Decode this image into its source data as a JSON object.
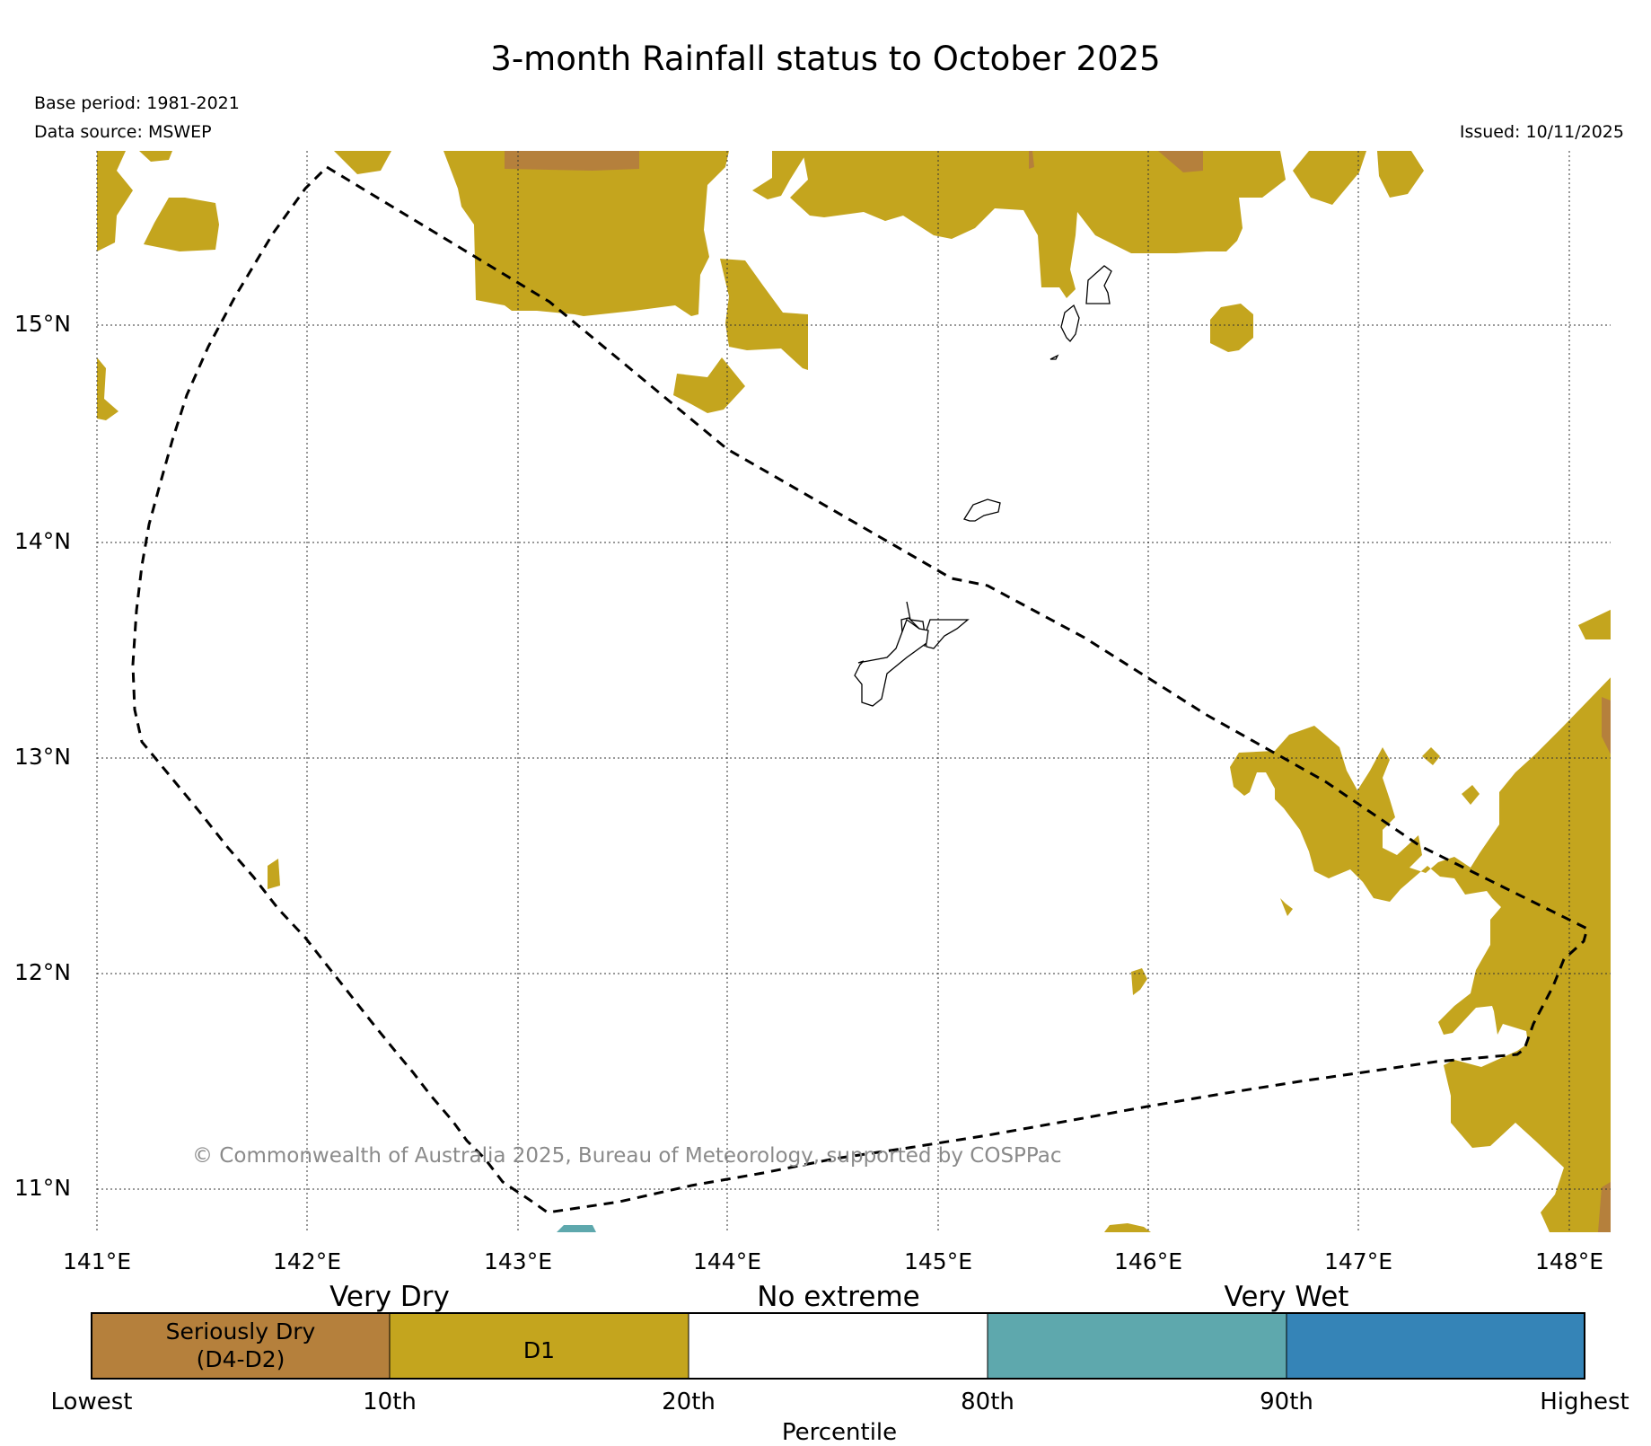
{
  "header": {
    "title": "3-month Rainfall status to October 2025",
    "base_period": "Base period: 1981-2021",
    "data_source": "Data source: MSWEP",
    "issued": "Issued: 10/11/2025"
  },
  "map": {
    "lat_labels": [
      "15°N",
      "14°N",
      "13°N",
      "12°N",
      "11°N"
    ],
    "lon_labels": [
      "141°E",
      "142°E",
      "143°E",
      "144°E",
      "145°E",
      "146°E",
      "147°E",
      "148°E"
    ],
    "copyright": "© Commonwealth of Australia 2025, Bureau of Meteorology, supported by COSPPac",
    "boundary_style": "dashed"
  },
  "legend": {
    "headings": [
      "Very Dry",
      "No extreme",
      "Very Wet"
    ],
    "segments": [
      {
        "label_line1": "Seriously Dry",
        "label_line2": "(D4-D2)",
        "color": "#b5803c"
      },
      {
        "label_line1": "D1",
        "label_line2": "",
        "color": "#c4a51e"
      },
      {
        "label_line1": "",
        "label_line2": "",
        "color": "#ffffff"
      },
      {
        "label_line1": "",
        "label_line2": "",
        "color": "#5ea8ad"
      },
      {
        "label_line1": "",
        "label_line2": "",
        "color": "#3584b7"
      }
    ],
    "percentiles": [
      "Lowest",
      "10th",
      "20th",
      "80th",
      "90th",
      "Highest"
    ],
    "axis_title": "Percentile"
  },
  "colors": {
    "seriously_dry": "#b5803c",
    "d1": "#c4a51e",
    "very_wet": "#5ea8ad",
    "highest": "#3584b7"
  }
}
